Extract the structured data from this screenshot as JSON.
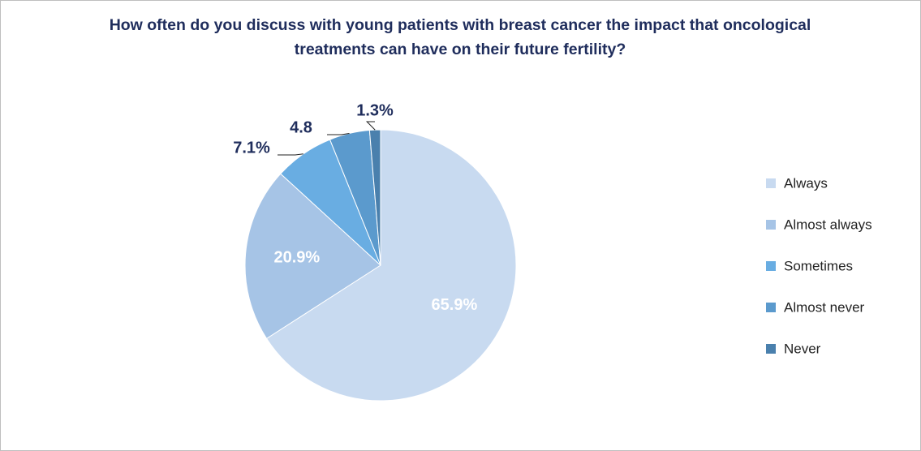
{
  "chart_data": {
    "type": "pie",
    "title": "How often do you discuss with young patients with breast cancer the impact that oncological treatments can have on their future fertility?",
    "categories": [
      "Always",
      "Almost always",
      "Sometimes",
      "Almost never",
      "Never"
    ],
    "values": [
      65.9,
      20.9,
      7.1,
      4.8,
      1.3
    ],
    "value_labels": [
      "65.9%",
      "20.9%",
      "7.1%",
      "4.8",
      "1.3%"
    ],
    "colors": [
      "#c8daf0",
      "#a6c4e6",
      "#69ade2",
      "#5b9acd",
      "#4a80ad"
    ],
    "legend": "right"
  }
}
